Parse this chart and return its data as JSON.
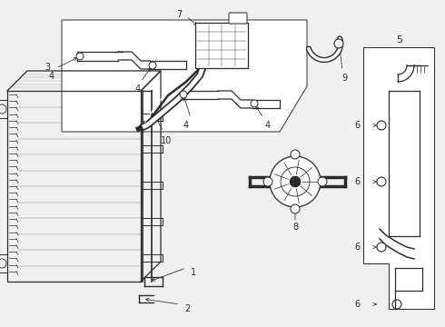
{
  "bg_color": "#f0f0f0",
  "line_color": "#2a2a2a",
  "fig_width": 4.9,
  "fig_height": 3.6,
  "dpi": 100,
  "label_fs": 7.0
}
